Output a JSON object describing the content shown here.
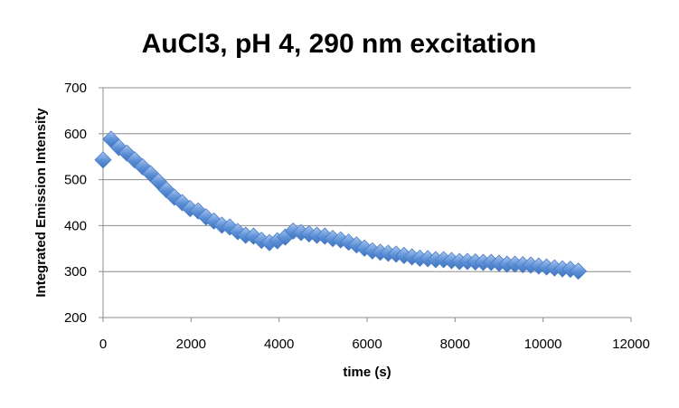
{
  "chart_data": {
    "type": "scatter",
    "title": "AuCl3, pH 4, 290 nm excitation",
    "xlabel": "time (s)",
    "ylabel": "Integrated Emission Intensity",
    "xlim": [
      0,
      12000
    ],
    "ylim": [
      200,
      700
    ],
    "xticks": [
      "0",
      "2000",
      "4000",
      "6000",
      "8000",
      "10000",
      "12000"
    ],
    "yticks": [
      "200",
      "300",
      "400",
      "500",
      "600",
      "700"
    ],
    "grid": true,
    "marker": "diamond",
    "marker_color": "#5b8fd6",
    "series": [
      {
        "x": [
          0,
          180,
          360,
          540,
          720,
          900,
          1080,
          1260,
          1440,
          1620,
          1800,
          1980,
          2160,
          2340,
          2520,
          2700,
          2880,
          3060,
          3240,
          3420,
          3600,
          3780,
          3960,
          4140,
          4320,
          4500,
          4680,
          4860,
          5040,
          5220,
          5400,
          5580,
          5760,
          5940,
          6120,
          6300,
          6480,
          6660,
          6840,
          7020,
          7200,
          7380,
          7560,
          7740,
          7920,
          8100,
          8280,
          8460,
          8640,
          8820,
          9000,
          9180,
          9360,
          9540,
          9720,
          9900,
          10080,
          10260,
          10440,
          10620,
          10800
        ],
        "y": [
          543,
          588,
          570,
          558,
          543,
          528,
          513,
          496,
          478,
          462,
          450,
          437,
          432,
          419,
          410,
          401,
          397,
          387,
          379,
          377,
          368,
          363,
          367,
          375,
          388,
          385,
          382,
          379,
          377,
          372,
          369,
          364,
          358,
          351,
          345,
          342,
          340,
          338,
          335,
          332,
          329,
          328,
          326,
          326,
          324,
          322,
          322,
          321,
          320,
          320,
          318,
          316,
          316,
          315,
          314,
          312,
          310,
          308,
          306,
          305,
          301
        ]
      }
    ]
  }
}
